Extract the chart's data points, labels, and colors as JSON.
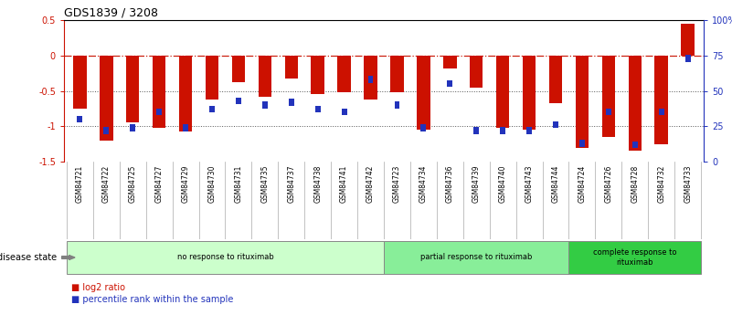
{
  "title": "GDS1839 / 3208",
  "samples": [
    "GSM84721",
    "GSM84722",
    "GSM84725",
    "GSM84727",
    "GSM84729",
    "GSM84730",
    "GSM84731",
    "GSM84735",
    "GSM84737",
    "GSM84738",
    "GSM84741",
    "GSM84742",
    "GSM84723",
    "GSM84734",
    "GSM84736",
    "GSM84739",
    "GSM84740",
    "GSM84743",
    "GSM84744",
    "GSM84724",
    "GSM84726",
    "GSM84728",
    "GSM84732",
    "GSM84733"
  ],
  "log2_ratio": [
    -0.75,
    -1.2,
    -0.95,
    -1.02,
    -1.08,
    -0.62,
    -0.38,
    -0.58,
    -0.32,
    -0.55,
    -0.52,
    -0.62,
    -0.52,
    -1.05,
    -0.18,
    -0.45,
    -1.02,
    -1.05,
    -0.68,
    -1.3,
    -1.15,
    -1.35,
    -1.25,
    0.45
  ],
  "percentile_rank": [
    0.3,
    0.22,
    0.24,
    0.35,
    0.24,
    0.37,
    0.43,
    0.4,
    0.42,
    0.37,
    0.35,
    0.58,
    0.4,
    0.24,
    0.55,
    0.22,
    0.22,
    0.22,
    0.26,
    0.13,
    0.35,
    0.12,
    0.35,
    0.73
  ],
  "groups": [
    {
      "label": "no response to rituximab",
      "start": 0,
      "end": 12,
      "color": "#ccffcc"
    },
    {
      "label": "partial response to rituximab",
      "start": 12,
      "end": 19,
      "color": "#88ee99"
    },
    {
      "label": "complete response to\nrituximab",
      "start": 19,
      "end": 24,
      "color": "#33cc44"
    }
  ],
  "bar_color": "#cc1100",
  "blue_color": "#2233bb",
  "ylim_left": [
    -1.5,
    0.5
  ],
  "ylim_right": [
    0,
    100
  ],
  "right_ticks": [
    0,
    25,
    50,
    75,
    100
  ],
  "right_tick_labels": [
    "0",
    "25",
    "50",
    "75",
    "100%"
  ],
  "left_ticks": [
    -1.5,
    -1.0,
    -0.5,
    0.0,
    0.5
  ],
  "left_tick_labels": [
    "-1.5",
    "-1",
    "-0.5",
    "0",
    "0.5"
  ],
  "hline_color": "#cc2211",
  "dotted_line_color": "#555555",
  "disease_state_label": "disease state",
  "legend_entries": [
    "log2 ratio",
    "percentile rank within the sample"
  ]
}
